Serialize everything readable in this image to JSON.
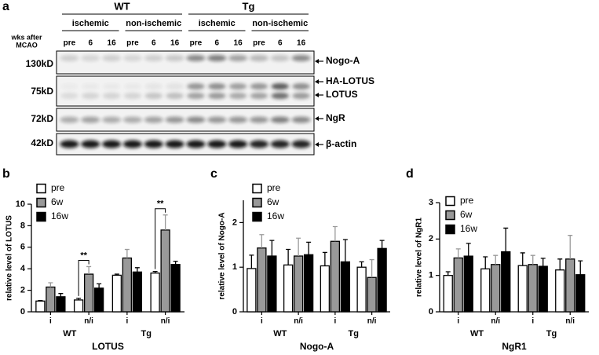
{
  "blot": {
    "panel_label": "a",
    "genotypes": [
      "WT",
      "Tg"
    ],
    "conditions": [
      "ischemic",
      "non-ischemic",
      "ischemic",
      "non-ischemic"
    ],
    "time_title": [
      "wks after",
      "MCAO"
    ],
    "lanes": [
      "pre",
      "6",
      "16",
      "pre",
      "6",
      "16",
      "pre",
      "6",
      "16",
      "pre",
      "6",
      "16"
    ],
    "sizes": [
      "130kD",
      "75kD",
      "72kD",
      "42kD"
    ],
    "proteins": [
      "Nogo-A",
      "HA-LOTUS",
      "LOTUS",
      "NgR",
      "β-actin"
    ]
  },
  "chart_data": [
    {
      "type": "bar",
      "panel_label": "b",
      "ylabel": "relative level of LOTUS",
      "xlabel": "LOTUS",
      "categories": [
        "i",
        "n/i",
        "i",
        "n/i"
      ],
      "groups": [
        "WT",
        "Tg"
      ],
      "ylim": [
        0,
        10
      ],
      "yticks": [
        0,
        2,
        4,
        6,
        8,
        10
      ],
      "annotations": [
        "**",
        "**"
      ],
      "series": [
        {
          "name": "pre",
          "color": "#ffffff",
          "values": [
            1.0,
            1.1,
            3.4,
            3.6
          ],
          "errors": [
            0.05,
            0.15,
            0.1,
            0.15
          ]
        },
        {
          "name": "6w",
          "color": "#999999",
          "values": [
            2.3,
            3.5,
            5.0,
            7.6
          ],
          "errors": [
            0.4,
            0.7,
            0.8,
            1.4
          ]
        },
        {
          "name": "16w",
          "color": "#000000",
          "values": [
            1.4,
            2.2,
            3.7,
            4.4
          ],
          "errors": [
            0.3,
            0.4,
            0.4,
            0.3
          ]
        }
      ]
    },
    {
      "type": "bar",
      "panel_label": "c",
      "ylabel": "relative level of Nogo-A",
      "xlabel": "Nogo-A",
      "categories": [
        "i",
        "n/i",
        "i",
        "n/i"
      ],
      "groups": [
        "WT",
        "Tg"
      ],
      "ylim": [
        0,
        2.5
      ],
      "yticks": [
        0,
        1,
        2
      ],
      "series": [
        {
          "name": "pre",
          "color": "#ffffff",
          "values": [
            0.97,
            1.05,
            1.03,
            1.0
          ],
          "errors": [
            0.3,
            0.35,
            0.3,
            0.12
          ]
        },
        {
          "name": "6w",
          "color": "#999999",
          "values": [
            1.43,
            1.25,
            1.58,
            0.77
          ],
          "errors": [
            0.3,
            0.4,
            0.33,
            0.4
          ]
        },
        {
          "name": "16w",
          "color": "#000000",
          "values": [
            1.25,
            1.28,
            1.12,
            1.42
          ],
          "errors": [
            0.35,
            0.28,
            0.5,
            0.18
          ]
        }
      ]
    },
    {
      "type": "bar",
      "panel_label": "d",
      "ylabel": "relative level of NgR1",
      "xlabel": "NgR1",
      "categories": [
        "i",
        "n/i",
        "i",
        "n/i"
      ],
      "groups": [
        "WT",
        "Tg"
      ],
      "ylim": [
        0,
        3
      ],
      "yticks": [
        0,
        1,
        2,
        3
      ],
      "series": [
        {
          "name": "pre",
          "color": "#ffffff",
          "values": [
            1.0,
            1.18,
            1.27,
            1.15
          ],
          "errors": [
            0.1,
            0.33,
            0.35,
            0.3
          ]
        },
        {
          "name": "6w",
          "color": "#999999",
          "values": [
            1.48,
            1.3,
            1.3,
            1.45
          ],
          "errors": [
            0.25,
            0.25,
            0.25,
            0.65
          ]
        },
        {
          "name": "16w",
          "color": "#000000",
          "values": [
            1.53,
            1.65,
            1.25,
            1.02
          ],
          "errors": [
            0.35,
            0.65,
            0.22,
            0.38
          ]
        }
      ]
    }
  ]
}
